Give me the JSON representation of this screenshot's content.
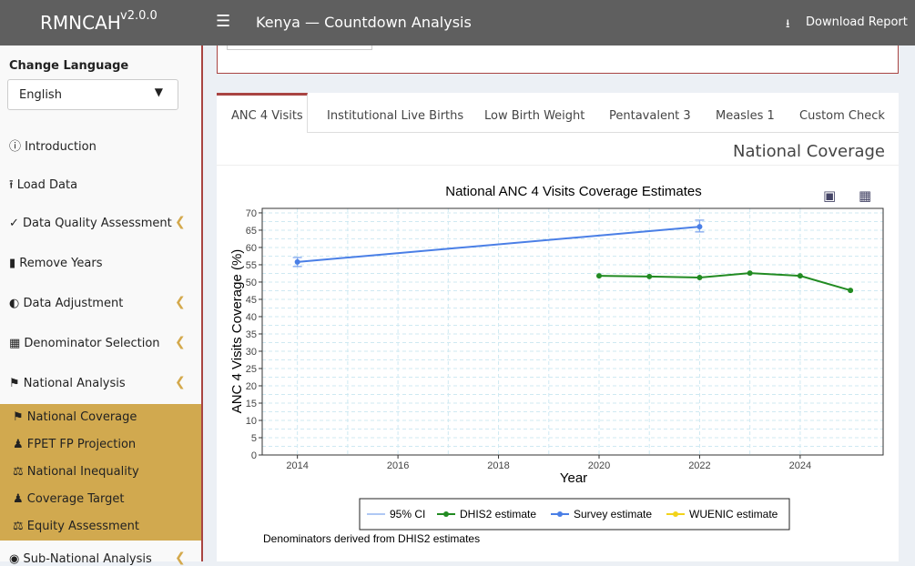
{
  "header": {
    "brand": "RMNCAH",
    "version": "v2.0.0",
    "title": "Kenya — Countdown Analysis",
    "download": "Download Report"
  },
  "sidebar": {
    "language_label": "Change Language",
    "language": "English",
    "items": [
      "Introduction",
      "Load Data",
      "Data Quality Assessment",
      "Remove Years",
      "Data Adjustment",
      "Denominator Selection",
      "National Analysis"
    ],
    "subitems": [
      "National Coverage",
      "FPET FP Projection",
      "National Inequality",
      "Coverage Target",
      "Equity Assessment"
    ],
    "next_item": "Sub-National Analysis"
  },
  "tabs": [
    "ANC 4 Visits",
    "Institutional Live Births",
    "Low Birth Weight",
    "Pentavalent 3",
    "Measles 1",
    "Custom Check"
  ],
  "section_title": "National Coverage",
  "chart_data": {
    "type": "line",
    "title": "National ANC 4 Visits Coverage Estimates",
    "x_label": "Year",
    "y_label": "ANC 4 Visits Coverage (%)",
    "xlim": [
      2013.3,
      2025.65
    ],
    "xticks": [
      2014,
      2016,
      2018,
      2020,
      2022,
      2024
    ],
    "ylim": [
      0,
      71.3
    ],
    "yticks": [
      0,
      5,
      10,
      15,
      20,
      25,
      30,
      35,
      40,
      45,
      50,
      55,
      60,
      65,
      70
    ],
    "grid": true,
    "series": [
      {
        "name": "95% CI",
        "color": "#7fa6ee",
        "x": [
          2014,
          2022
        ],
        "lower": [
          54.5,
          64.5
        ],
        "upper": [
          57.1,
          67.9
        ]
      },
      {
        "name": "DHIS2 estimate",
        "color": "#228b22",
        "x": [
          2020,
          2021,
          2022,
          2023,
          2024,
          2025
        ],
        "values": [
          51.8,
          51.6,
          51.3,
          52.6,
          51.8,
          47.6
        ]
      },
      {
        "name": "Survey estimate",
        "color": "#4a7fe6",
        "x": [
          2014,
          2022
        ],
        "values": [
          55.8,
          66.0
        ]
      },
      {
        "name": "WUENIC estimate",
        "color": "#f2d31b",
        "x": [],
        "values": []
      }
    ]
  },
  "footnote": "Denominators derived from DHIS2 estimates"
}
